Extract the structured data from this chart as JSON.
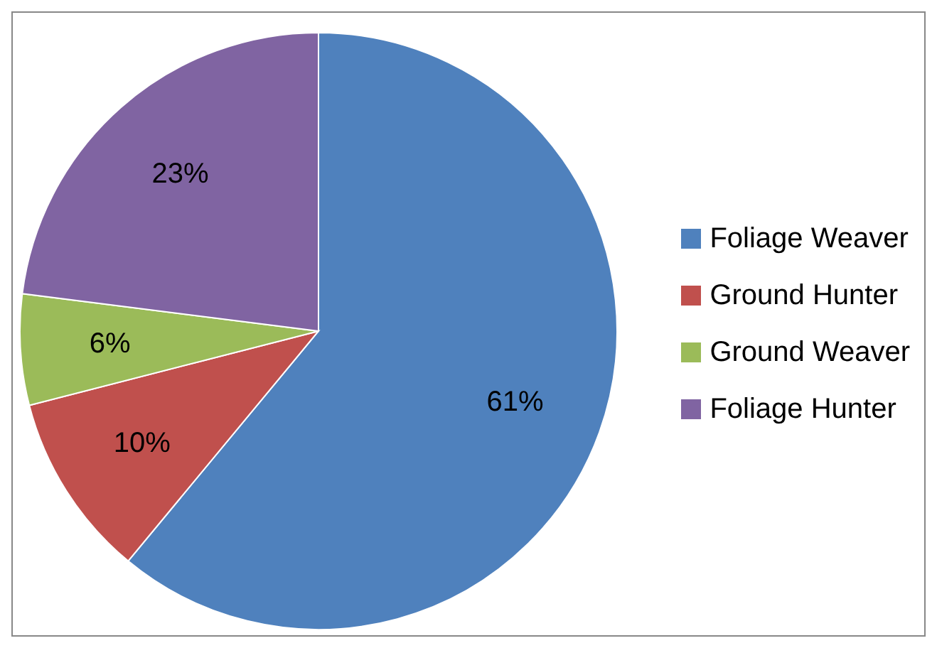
{
  "chart_data": {
    "type": "pie",
    "categories": [
      "Foliage Weaver",
      "Ground Hunter",
      "Ground Weaver",
      "Foliage Hunter"
    ],
    "values": [
      61,
      10,
      6,
      23
    ],
    "colors": [
      "#4f81bd",
      "#c0504d",
      "#9bbb59",
      "#8064a2"
    ],
    "value_labels": [
      "61%",
      "10%",
      "6%",
      "23%"
    ],
    "legend": "right"
  }
}
